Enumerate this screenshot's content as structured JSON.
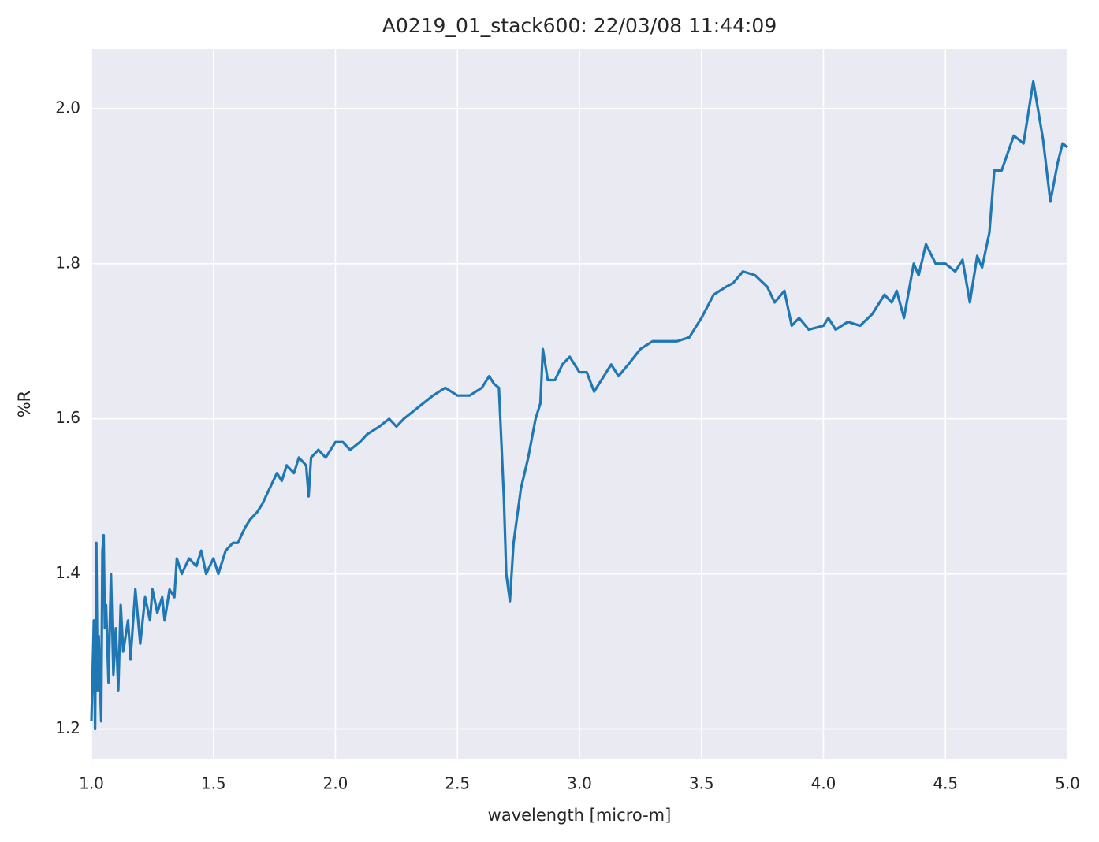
{
  "chart_data": {
    "type": "line",
    "title": "A0219_01_stack600:  22/03/08 11:44:09",
    "x_label": "wavelength [micro-m]",
    "y_label": "%R",
    "xlim": [
      1.0,
      5.0
    ],
    "ylim": [
      1.161,
      2.077
    ],
    "grid": true,
    "background": "#eaeaf2",
    "xticks": [
      {
        "value": 1.0,
        "label": "1.0"
      },
      1.5,
      {
        "value": 2.0,
        "label": "2.0"
      },
      2.5,
      {
        "value": 3.0,
        "label": "3.0"
      },
      3.5,
      {
        "value": 4.0,
        "label": "4.0"
      },
      4.5,
      {
        "value": 5.0,
        "label": "5.0"
      }
    ],
    "yticks": [
      1.2,
      1.4,
      1.6,
      1.8,
      {
        "value": 2.0,
        "label": "2.0"
      }
    ],
    "x": [
      1.0,
      1.01,
      1.015,
      1.02,
      1.025,
      1.03,
      1.04,
      1.045,
      1.05,
      1.055,
      1.06,
      1.07,
      1.08,
      1.09,
      1.1,
      1.11,
      1.12,
      1.13,
      1.15,
      1.16,
      1.18,
      1.2,
      1.22,
      1.24,
      1.25,
      1.27,
      1.29,
      1.3,
      1.32,
      1.34,
      1.35,
      1.37,
      1.4,
      1.43,
      1.45,
      1.47,
      1.5,
      1.52,
      1.55,
      1.58,
      1.6,
      1.63,
      1.65,
      1.68,
      1.7,
      1.73,
      1.76,
      1.78,
      1.8,
      1.83,
      1.85,
      1.88,
      1.89,
      1.9,
      1.93,
      1.96,
      1.98,
      2.0,
      2.03,
      2.06,
      2.1,
      2.13,
      2.18,
      2.22,
      2.25,
      2.28,
      2.32,
      2.36,
      2.4,
      2.45,
      2.5,
      2.55,
      2.6,
      2.63,
      2.65,
      2.67,
      2.69,
      2.7,
      2.715,
      2.73,
      2.76,
      2.79,
      2.82,
      2.84,
      2.85,
      2.87,
      2.9,
      2.93,
      2.96,
      3.0,
      3.03,
      3.06,
      3.09,
      3.13,
      3.16,
      3.2,
      3.25,
      3.3,
      3.35,
      3.4,
      3.45,
      3.5,
      3.55,
      3.6,
      3.63,
      3.67,
      3.72,
      3.77,
      3.8,
      3.84,
      3.87,
      3.9,
      3.94,
      4.0,
      4.02,
      4.05,
      4.1,
      4.15,
      4.2,
      4.25,
      4.28,
      4.3,
      4.33,
      4.37,
      4.39,
      4.42,
      4.46,
      4.5,
      4.54,
      4.57,
      4.6,
      4.63,
      4.65,
      4.68,
      4.7,
      4.73,
      4.78,
      4.82,
      4.86,
      4.9,
      4.93,
      4.96,
      4.98,
      5.0
    ],
    "series": [
      {
        "name": "%R",
        "color": "#1f77b4",
        "values": [
          1.21,
          1.34,
          1.2,
          1.44,
          1.25,
          1.32,
          1.21,
          1.43,
          1.45,
          1.33,
          1.36,
          1.26,
          1.4,
          1.27,
          1.33,
          1.25,
          1.36,
          1.3,
          1.34,
          1.29,
          1.38,
          1.31,
          1.37,
          1.34,
          1.38,
          1.35,
          1.37,
          1.34,
          1.38,
          1.37,
          1.42,
          1.4,
          1.42,
          1.41,
          1.43,
          1.4,
          1.42,
          1.4,
          1.43,
          1.44,
          1.44,
          1.46,
          1.47,
          1.48,
          1.49,
          1.51,
          1.53,
          1.52,
          1.54,
          1.53,
          1.55,
          1.54,
          1.5,
          1.55,
          1.56,
          1.55,
          1.56,
          1.57,
          1.57,
          1.56,
          1.57,
          1.58,
          1.59,
          1.6,
          1.59,
          1.6,
          1.61,
          1.62,
          1.63,
          1.64,
          1.63,
          1.63,
          1.64,
          1.655,
          1.645,
          1.64,
          1.5,
          1.4,
          1.365,
          1.44,
          1.51,
          1.55,
          1.6,
          1.62,
          1.69,
          1.65,
          1.65,
          1.67,
          1.68,
          1.66,
          1.66,
          1.635,
          1.65,
          1.67,
          1.655,
          1.67,
          1.69,
          1.7,
          1.7,
          1.7,
          1.705,
          1.73,
          1.76,
          1.77,
          1.775,
          1.79,
          1.785,
          1.77,
          1.75,
          1.765,
          1.72,
          1.73,
          1.715,
          1.72,
          1.73,
          1.715,
          1.725,
          1.72,
          1.735,
          1.76,
          1.75,
          1.765,
          1.73,
          1.8,
          1.785,
          1.825,
          1.8,
          1.8,
          1.79,
          1.805,
          1.75,
          1.81,
          1.795,
          1.84,
          1.92,
          1.92,
          1.965,
          1.955,
          2.035,
          1.96,
          1.88,
          1.93,
          1.955,
          1.95
        ]
      }
    ]
  }
}
